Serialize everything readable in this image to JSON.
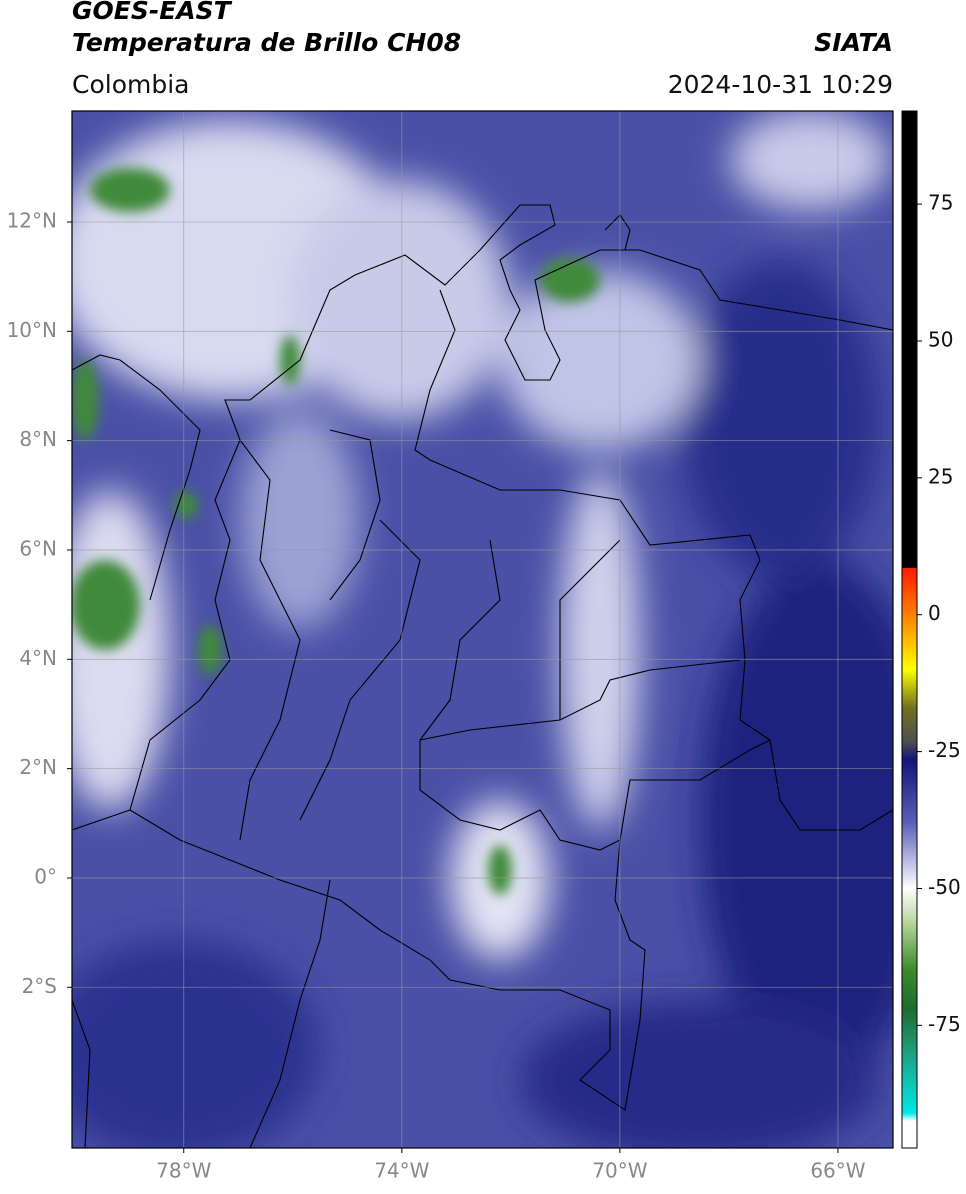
{
  "header": {
    "title": "GOES-EAST",
    "subtitle": "Temperatura de Brillo CH08",
    "source": "SIATA",
    "region": "Colombia",
    "timestamp": "2024-10-31 10:29"
  },
  "map": {
    "xlim": [
      -80.05,
      -64.99
    ],
    "ylim": [
      -4.94,
      14.03
    ],
    "xticks": [
      {
        "value": -78,
        "label": "78°W"
      },
      {
        "value": -74,
        "label": "74°W"
      },
      {
        "value": -70,
        "label": "70°W"
      },
      {
        "value": -66,
        "label": "66°W"
      }
    ],
    "yticks": [
      {
        "value": 12,
        "label": "12°N"
      },
      {
        "value": 10,
        "label": "10°N"
      },
      {
        "value": 8,
        "label": "8°N"
      },
      {
        "value": 6,
        "label": "6°N"
      },
      {
        "value": 4,
        "label": "4°N"
      },
      {
        "value": 2,
        "label": "2°N"
      },
      {
        "value": 0,
        "label": "0°"
      },
      {
        "value": -2,
        "label": "2°S"
      }
    ],
    "grid": true
  },
  "colorbar": {
    "ylim": [
      -97.4,
      92
    ],
    "yticks": [
      75,
      50,
      25,
      0,
      -25,
      -50,
      -75
    ],
    "colormap": [
      {
        "value": 92,
        "color": "#000000"
      },
      {
        "value": 8.6,
        "color": "#000000"
      },
      {
        "value": 8.5,
        "color": "#ff1a00"
      },
      {
        "value": 0,
        "color": "#ff8000"
      },
      {
        "value": -10,
        "color": "#ffff00"
      },
      {
        "value": -17,
        "color": "#707020"
      },
      {
        "value": -23,
        "color": "#505050"
      },
      {
        "value": -26.5,
        "color": "#14147a"
      },
      {
        "value": -38,
        "color": "#5a60b8"
      },
      {
        "value": -50,
        "color": "#ffffff"
      },
      {
        "value": -56,
        "color": "#b8d8a0"
      },
      {
        "value": -65,
        "color": "#3a8a2a"
      },
      {
        "value": -72,
        "color": "#1f6b30"
      },
      {
        "value": -80,
        "color": "#20a080"
      },
      {
        "value": -91,
        "color": "#00e8e8"
      },
      {
        "value": -92.5,
        "color": "#ffffff"
      },
      {
        "value": -97.4,
        "color": "#ffffff"
      }
    ]
  }
}
